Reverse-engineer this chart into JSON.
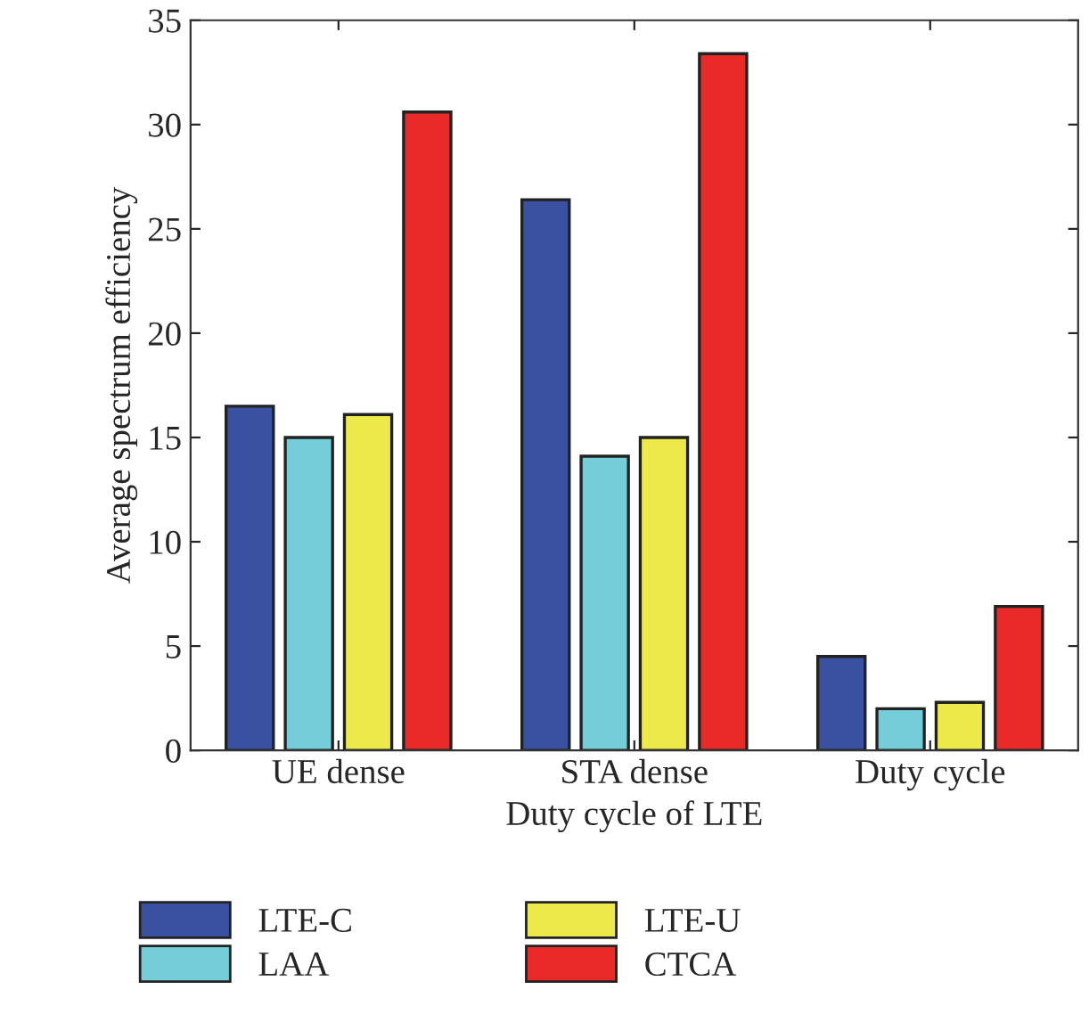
{
  "chart_data": {
    "type": "bar",
    "xlabel": "Duty cycle of LTE",
    "ylabel": "Average spectrum efficiency",
    "categories": [
      "UE dense",
      "STA dense",
      "Duty cycle"
    ],
    "series": [
      {
        "name": "LTE-C",
        "color": "#3a51a1",
        "values": [
          16.5,
          26.4,
          4.5
        ]
      },
      {
        "name": "LAA",
        "color": "#74cdd8",
        "values": [
          15.0,
          14.1,
          2.0
        ]
      },
      {
        "name": "LTE-U",
        "color": "#eee94a",
        "values": [
          16.1,
          15.0,
          2.3
        ]
      },
      {
        "name": "CTCA",
        "color": "#ea2a29",
        "values": [
          30.6,
          33.4,
          6.9
        ]
      }
    ],
    "ylim": [
      0,
      35
    ],
    "yticks": [
      0,
      5,
      10,
      15,
      20,
      25,
      30,
      35
    ],
    "grid": false,
    "legend": "bottom"
  }
}
